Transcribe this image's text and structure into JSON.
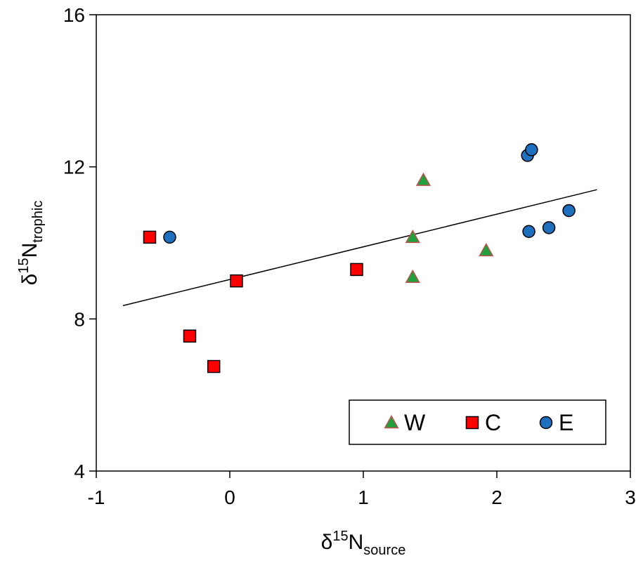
{
  "chart_data": {
    "type": "scatter",
    "xlabel": {
      "symbol": "δ",
      "sup": "15",
      "base": "N",
      "sub": "source"
    },
    "ylabel": {
      "symbol": "δ",
      "sup": "15",
      "base": "N",
      "sub": "trophic"
    },
    "xlim": [
      -1,
      3
    ],
    "ylim": [
      4,
      16
    ],
    "x_ticks": [
      -1,
      0,
      1,
      2,
      3
    ],
    "y_ticks": [
      4,
      8,
      12,
      16
    ],
    "x_tick_labels": [
      "-1",
      "0",
      "1",
      "2",
      "3"
    ],
    "y_tick_labels": [
      "4",
      "8",
      "12",
      "16"
    ],
    "grid": false,
    "legend_position": "bottom-right",
    "series": [
      {
        "name": "W",
        "marker": "triangle",
        "fill": "#1fa03c",
        "stroke": "#c0504d",
        "points": [
          {
            "x": 1.45,
            "y": 11.65
          },
          {
            "x": 1.37,
            "y": 10.15
          },
          {
            "x": 1.37,
            "y": 9.1
          },
          {
            "x": 1.92,
            "y": 9.8
          }
        ]
      },
      {
        "name": "C",
        "marker": "square",
        "fill": "#ff0000",
        "stroke": "#000000",
        "points": [
          {
            "x": -0.6,
            "y": 10.15
          },
          {
            "x": 0.05,
            "y": 9.0
          },
          {
            "x": 0.95,
            "y": 9.3
          },
          {
            "x": -0.3,
            "y": 7.55
          },
          {
            "x": -0.12,
            "y": 6.75
          }
        ]
      },
      {
        "name": "E",
        "marker": "circle",
        "fill": "#1f6fbf",
        "stroke": "#000000",
        "points": [
          {
            "x": -0.45,
            "y": 10.15
          },
          {
            "x": 2.23,
            "y": 12.3
          },
          {
            "x": 2.26,
            "y": 12.45
          },
          {
            "x": 2.24,
            "y": 10.3
          },
          {
            "x": 2.39,
            "y": 10.4
          },
          {
            "x": 2.54,
            "y": 10.85
          }
        ]
      }
    ],
    "trendline": {
      "x": [
        -0.8,
        2.75
      ],
      "y": [
        8.35,
        11.4
      ],
      "color": "#000000"
    }
  }
}
